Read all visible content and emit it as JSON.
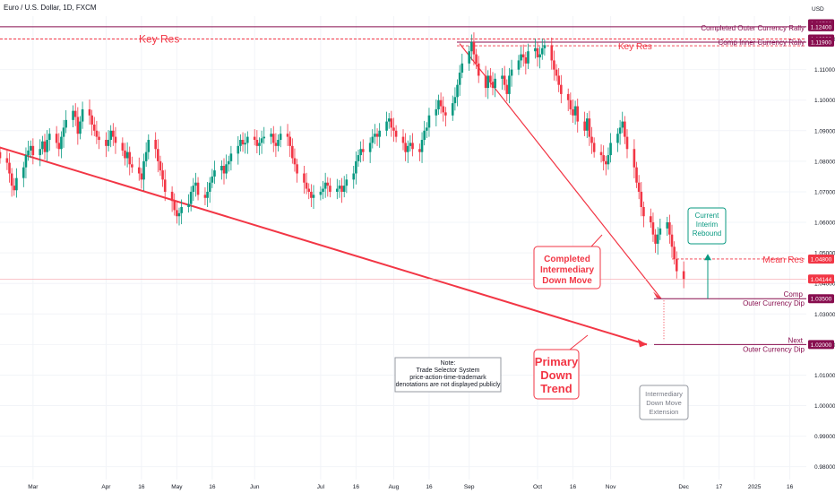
{
  "symbol_title": "Euro / U.S. Dollar, 1D, FXCM",
  "currency": "USD",
  "colors": {
    "up": "#089981",
    "down": "#f23645",
    "purple": "#880e4f",
    "green": "#089981",
    "red": "#f23645",
    "grid": "#f0f3fa",
    "label_dark": "#880e4f",
    "gray": "#787b86"
  },
  "chart_data": {
    "type": "candlestick",
    "title": "Euro / U.S. Dollar, 1D, FXCM",
    "y_axis": {
      "min": 0.98,
      "max": 1.125,
      "unit": "USD",
      "ticks": [
        "0.98000",
        "0.99000",
        "1.00000",
        "1.01000",
        "1.02000",
        "1.03000",
        "1.04000",
        "1.05000",
        "1.06000",
        "1.07000",
        "1.08000",
        "1.09000",
        "1.10000",
        "1.11000",
        "1.12000"
      ]
    },
    "x_axis": {
      "ticks": [
        "Mar",
        "Apr",
        "16",
        "May",
        "16",
        "Jun",
        "Jul",
        "16",
        "Aug",
        "16",
        "Sep",
        "Oct",
        "16",
        "Nov",
        "Dec",
        "17",
        "2025",
        "16"
      ],
      "tick_dates": [
        "2024-03-01",
        "2024-04-01",
        "2024-04-16",
        "2024-05-01",
        "2024-05-16",
        "2024-06-03",
        "2024-07-01",
        "2024-07-16",
        "2024-08-01",
        "2024-08-16",
        "2024-09-02",
        "2024-10-01",
        "2024-10-16",
        "2024-11-01",
        "2024-12-02",
        "2024-12-17",
        "2025-01-01",
        "2025-01-16"
      ]
    },
    "closes": [
      1.081,
      1.0795,
      1.076,
      1.072,
      1.0705,
      1.0745,
      1.078,
      1.082,
      1.0835,
      1.085,
      1.082,
      1.084,
      1.0865,
      1.083,
      1.087,
      1.089,
      1.086,
      1.084,
      1.088,
      1.091,
      1.0935,
      1.0965,
      1.0945,
      1.089,
      1.093,
      1.097,
      1.095,
      1.092,
      1.09,
      1.088,
      1.087,
      1.085,
      1.087,
      1.09,
      1.088,
      1.086,
      1.0835,
      1.081,
      1.083,
      1.079,
      1.078,
      1.076,
      1.074,
      1.08,
      1.083,
      1.087,
      1.084,
      1.08,
      1.077,
      1.074,
      1.07,
      1.067,
      1.064,
      1.062,
      1.063,
      1.065,
      1.066,
      1.07,
      1.072,
      1.073,
      1.069,
      1.068,
      1.07,
      1.073,
      1.075,
      1.077,
      1.0785,
      1.076,
      1.079,
      1.08,
      1.0825,
      1.085,
      1.087,
      1.0855,
      1.086,
      1.088,
      1.087,
      1.085,
      1.086,
      1.0875,
      1.088,
      1.089,
      1.086,
      1.085,
      1.087,
      1.089,
      1.088,
      1.085,
      1.081,
      1.079,
      1.076,
      1.073,
      1.071,
      1.07,
      1.068,
      1.069,
      1.07,
      1.071,
      1.073,
      1.072,
      1.07,
      1.071,
      1.072,
      1.07,
      1.072,
      1.074,
      1.076,
      1.08,
      1.082,
      1.084,
      1.083,
      1.086,
      1.088,
      1.089,
      1.088,
      1.09,
      1.093,
      1.094,
      1.091,
      1.09,
      1.088,
      1.086,
      1.083,
      1.085,
      1.086,
      1.084,
      1.083,
      1.087,
      1.09,
      1.091,
      1.095,
      1.097,
      1.1,
      1.098,
      1.096,
      1.095,
      1.099,
      1.101,
      1.105,
      1.109,
      1.112,
      1.116,
      1.119,
      1.115,
      1.112,
      1.108,
      1.104,
      1.108,
      1.106,
      1.104,
      1.107,
      1.108,
      1.105,
      1.102,
      1.108,
      1.11,
      1.113,
      1.115,
      1.114,
      1.112,
      1.116,
      1.117,
      1.114,
      1.115,
      1.117,
      1.118,
      1.113,
      1.11,
      1.108,
      1.105,
      1.102,
      1.1,
      1.097,
      1.095,
      1.098,
      1.093,
      1.09,
      1.094,
      1.088,
      1.086,
      1.083,
      1.082,
      1.08,
      1.079,
      1.082,
      1.086,
      1.089,
      1.091,
      1.093,
      1.088,
      1.084,
      1.078,
      1.073,
      1.07,
      1.065,
      1.062,
      1.06,
      1.056,
      1.053,
      1.056,
      1.058,
      1.06,
      1.056,
      1.052,
      1.048,
      1.044,
      1.04144
    ],
    "current_price": "1.04144",
    "price_labels": [
      {
        "value": 1.125,
        "text": "1.12500"
      },
      {
        "value": 1.124,
        "text": "1.12400"
      },
      {
        "value": 1.12,
        "text": "1.12000"
      },
      {
        "value": 1.119,
        "text": "1.11900"
      },
      {
        "value": 1.048,
        "text": "1.04800"
      },
      {
        "value": 1.04144,
        "text": "1.04144"
      },
      {
        "value": 1.035,
        "text": "1.03500"
      },
      {
        "value": 1.02,
        "text": "1.02000"
      }
    ],
    "levels": [
      {
        "value": 1.124,
        "label": "Completed Outer Currency Rally",
        "color": "purple"
      },
      {
        "value": 1.12,
        "label": "Key Res",
        "color": "red-left"
      },
      {
        "value": 1.119,
        "label": "Comp Inner Currency Rally",
        "color": "purple"
      },
      {
        "value": 1.048,
        "label": "Mean Res",
        "color": "red-dotted"
      },
      {
        "value": 1.035,
        "label": "Comp Outer Currency Dip",
        "color": "purple"
      },
      {
        "value": 1.02,
        "label": "Next Outer Currency Dip",
        "color": "purple"
      }
    ]
  },
  "annotations": {
    "key_res_left": "Key Res",
    "key_res_right": "Key Res",
    "completed_outer_rally": "Completed Outer Currency Rally",
    "comp_inner_rally": "Comp Inner Currency Rally",
    "mean_res": "Mean Res",
    "comp_outer_dip_1": "Comp",
    "comp_outer_dip_2": "Outer Currency Dip",
    "next_outer_dip_1": "Next",
    "next_outer_dip_2": "Outer Currency Dip",
    "completed_intermediary": [
      "Completed",
      "Intermediary",
      "Down Move"
    ],
    "primary_down_trend": [
      "Primary",
      "Down",
      "Trend"
    ],
    "current_interim_rebound": [
      "Current",
      "Interim",
      "Rebound"
    ],
    "intermediary_extension": [
      "Intermediary",
      "Down Move",
      "Extension"
    ],
    "note": [
      "Note:",
      "Trade Selector System",
      "price-action-time-trademark",
      "denotations are not displayed publicly"
    ]
  }
}
